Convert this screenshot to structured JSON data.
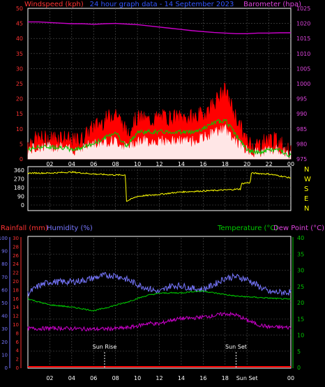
{
  "header": {
    "left_title": "Windspeed (kph)",
    "center_title": "24 hour graph data - 14 September 2023",
    "right_title": "Barometer (hpa)"
  },
  "colors": {
    "wind_gust": "#ff0000",
    "wind_avg": "#00cc00",
    "wind_speed": "#ffffff",
    "wind_dir": "#ffff00",
    "barometer": "#cc00cc",
    "rainfall": "#ff0000",
    "humidity": "#7777ff",
    "temperature": "#00cc00",
    "dew_point": "#cc00cc",
    "grid": "#555555",
    "frame": "#ffffff",
    "left_axis_text": "#ff3333",
    "right_axis_text": "#dd44dd",
    "center_title_text": "#3355ff"
  },
  "chart_data": [
    {
      "id": "wind",
      "type": "line",
      "title": "24 hour graph data - 14 September 2023",
      "ylabel_left": "Windspeed (kph)",
      "ylabel_right": "Barometer (hpa)",
      "ylim_left": [
        0,
        50
      ],
      "ylim_right": [
        975,
        1025
      ],
      "yticks_left": [
        "0",
        "5",
        "10",
        "15",
        "20",
        "25",
        "30",
        "35",
        "40",
        "45",
        "50"
      ],
      "yticks_right": [
        "975",
        "980",
        "985",
        "990",
        "995",
        "1000",
        "1005",
        "1010",
        "1015",
        "1020",
        "1025"
      ],
      "x_hours": [
        0,
        1,
        2,
        3,
        4,
        5,
        6,
        7,
        8,
        9,
        10,
        11,
        12,
        13,
        14,
        15,
        16,
        17,
        18,
        19,
        20,
        21,
        22,
        23,
        24
      ],
      "xtick_labels": [
        "02",
        "04",
        "06",
        "08",
        "10",
        "12",
        "14",
        "16",
        "18",
        "20",
        "22",
        "00"
      ],
      "series": [
        {
          "key": "gust",
          "axis": "left",
          "values": [
            5,
            6,
            6,
            7,
            5,
            6,
            10,
            12,
            15,
            8,
            13,
            12,
            13,
            13,
            13,
            13,
            14,
            18,
            22,
            13,
            5,
            4,
            6,
            5,
            1
          ]
        },
        {
          "key": "avg",
          "axis": "left",
          "values": [
            3,
            4,
            4,
            4,
            3,
            4,
            5,
            7,
            9,
            4,
            9,
            9,
            9,
            9,
            9,
            9,
            10,
            12,
            13,
            8,
            3,
            2,
            3,
            3,
            1
          ]
        },
        {
          "key": "speed",
          "axis": "left",
          "values": [
            2,
            3,
            3,
            3,
            2,
            3,
            4,
            5,
            5,
            3,
            5,
            5,
            5,
            5,
            5,
            5,
            6,
            8,
            9,
            5,
            2,
            1,
            2,
            2,
            0
          ]
        },
        {
          "key": "barometer",
          "axis": "right",
          "values": [
            1020.5,
            1020.5,
            1020.3,
            1020.1,
            1019.9,
            1019.9,
            1019.7,
            1019.9,
            1020.0,
            1019.8,
            1019.6,
            1019.2,
            1018.8,
            1018.4,
            1018.0,
            1017.6,
            1017.3,
            1017.0,
            1016.8,
            1016.6,
            1016.6,
            1016.8,
            1016.8,
            1016.9,
            1016.9
          ]
        }
      ]
    },
    {
      "id": "direction",
      "type": "line",
      "ylim": [
        0,
        360
      ],
      "yticks": [
        "0",
        "90",
        "180",
        "270",
        "360"
      ],
      "compass_labels": [
        "N",
        "W",
        "S",
        "E",
        "N"
      ],
      "x_hours": [
        0,
        2,
        4,
        6,
        8,
        8.9,
        9,
        10,
        12,
        14,
        16,
        18,
        19.4,
        19.5,
        20,
        20.3,
        20.4,
        22,
        24
      ],
      "values": [
        330,
        330,
        340,
        320,
        310,
        310,
        40,
        90,
        110,
        135,
        145,
        155,
        165,
        220,
        230,
        230,
        330,
        320,
        280
      ]
    },
    {
      "id": "weather",
      "type": "line",
      "legend": [
        "Rainfall (mm)",
        "Humidity (%)",
        "Temperature (°C)",
        "Dew Point (°C)"
      ],
      "ylim_humidity": [
        0,
        100
      ],
      "ylim_rainfall": [
        0,
        30
      ],
      "ylim_temperature": [
        0,
        40
      ],
      "yticks_humidity": [
        "0",
        "10",
        "20",
        "30",
        "40",
        "50",
        "60",
        "70",
        "80",
        "90",
        "100"
      ],
      "yticks_rainfall": [
        "0",
        "2",
        "4",
        "6",
        "8",
        "10",
        "12",
        "14",
        "16",
        "18",
        "20",
        "22",
        "24",
        "26",
        "28",
        "30"
      ],
      "yticks_temperature": [
        "0",
        "5",
        "10",
        "15",
        "20",
        "25",
        "30",
        "35",
        "40"
      ],
      "x_hours": [
        0,
        1,
        2,
        3,
        4,
        5,
        6,
        7,
        8,
        9,
        10,
        11,
        12,
        13,
        14,
        15,
        16,
        17,
        18,
        19,
        20,
        21,
        22,
        23,
        24
      ],
      "xtick_labels": [
        "02",
        "04",
        "06",
        "08",
        "10",
        "12",
        "14",
        "16",
        "18",
        "Sun Set",
        "00"
      ],
      "annotations": {
        "sunrise_label": "Sun Rise",
        "sunrise_hour": 7,
        "sunset_label": "Sun Set",
        "sunset_hour": 19
      },
      "series": [
        {
          "key": "humidity",
          "values": [
            57,
            63,
            66,
            66,
            66,
            67,
            69,
            71,
            71,
            68,
            64,
            61,
            58,
            63,
            63,
            61,
            60,
            64,
            69,
            70,
            68,
            63,
            58,
            58,
            58
          ]
        },
        {
          "key": "temperature",
          "values": [
            21.2,
            20.2,
            19.3,
            19.0,
            18.6,
            18.1,
            17.5,
            18.3,
            19.2,
            20.1,
            21.3,
            22.3,
            22.9,
            23.0,
            23.0,
            23.4,
            23.6,
            23.0,
            22.5,
            22.0,
            21.8,
            21.6,
            21.4,
            21.2,
            21.0
          ]
        },
        {
          "key": "dew_point",
          "values": [
            12.0,
            12.0,
            12.1,
            12.1,
            12.0,
            11.9,
            11.8,
            11.9,
            12.0,
            12.2,
            12.8,
            13.7,
            13.4,
            14.6,
            15.1,
            15.2,
            15.6,
            16.0,
            16.6,
            16.2,
            14.6,
            13.2,
            12.5,
            12.4,
            12.3
          ]
        },
        {
          "key": "rainfall",
          "values": [
            0,
            0,
            0,
            0,
            0,
            0,
            0,
            0,
            0,
            0,
            0,
            0,
            0,
            0,
            0,
            0,
            0,
            0,
            0,
            0,
            0,
            0,
            0,
            0,
            0
          ]
        }
      ]
    }
  ]
}
